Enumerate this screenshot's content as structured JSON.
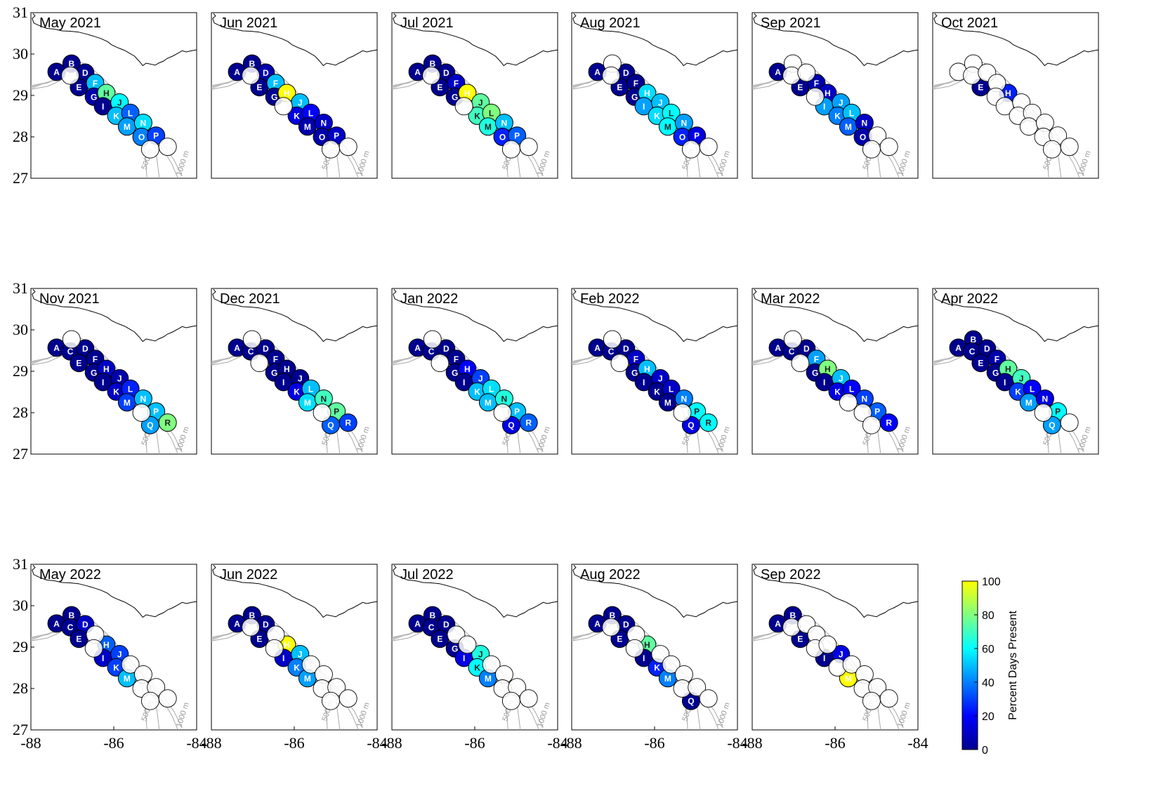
{
  "chart_data": {
    "type": "scatter",
    "description_axes": {
      "x_ticks": [
        "-88",
        "-86",
        "-84"
      ],
      "y_ticks": [
        "27",
        "28",
        "29",
        "30",
        "31"
      ],
      "xlim": [
        -88,
        -84
      ],
      "ylim": [
        27,
        31
      ]
    },
    "isobath_labels": [
      "500 m",
      "1000 m"
    ],
    "colorbar": {
      "label": "Percent Days Present",
      "ticks": [
        "0",
        "20",
        "40",
        "60",
        "80",
        "100"
      ],
      "range": [
        0,
        100
      ],
      "colormap": [
        "#00008f",
        "#0000ff",
        "#0080ff",
        "#00ffff",
        "#80ff80",
        "#ffff00"
      ]
    },
    "sites": [
      {
        "id": "A",
        "lon": -87.38,
        "lat": 29.57
      },
      {
        "id": "B",
        "lon": -87.02,
        "lat": 29.77
      },
      {
        "id": "C",
        "lon": -87.05,
        "lat": 29.48
      },
      {
        "id": "D",
        "lon": -86.69,
        "lat": 29.55
      },
      {
        "id": "E",
        "lon": -86.84,
        "lat": 29.2
      },
      {
        "id": "F",
        "lon": -86.45,
        "lat": 29.3
      },
      {
        "id": "G",
        "lon": -86.48,
        "lat": 28.97
      },
      {
        "id": "H",
        "lon": -86.18,
        "lat": 29.06
      },
      {
        "id": "I",
        "lon": -86.26,
        "lat": 28.74
      },
      {
        "id": "J",
        "lon": -85.86,
        "lat": 28.83
      },
      {
        "id": "K",
        "lon": -85.94,
        "lat": 28.51
      },
      {
        "id": "L",
        "lon": -85.6,
        "lat": 28.58
      },
      {
        "id": "M",
        "lon": -85.68,
        "lat": 28.25
      },
      {
        "id": "N",
        "lon": -85.29,
        "lat": 28.34
      },
      {
        "id": "O",
        "lon": -85.33,
        "lat": 28.0
      },
      {
        "id": "P",
        "lon": -84.98,
        "lat": 28.03
      },
      {
        "id": "Q",
        "lon": -85.12,
        "lat": 27.7
      },
      {
        "id": "R",
        "lon": -84.7,
        "lat": 27.76
      }
    ],
    "panels": [
      {
        "title": "May 2021",
        "values": {
          "A": 0,
          "B": 0,
          "C": null,
          "D": 0,
          "E": 0,
          "F": 50,
          "G": 5,
          "H": 75,
          "I": 0,
          "J": 60,
          "K": 50,
          "L": 35,
          "M": 45,
          "N": 55,
          "O": 40,
          "P": 30,
          "Q": null,
          "R": null
        }
      },
      {
        "title": "Jun 2021",
        "values": {
          "A": 0,
          "B": 0,
          "C": null,
          "D": 5,
          "E": 0,
          "F": 50,
          "G": 0,
          "H": 100,
          "I": null,
          "J": 50,
          "K": 15,
          "L": 20,
          "M": 5,
          "N": 10,
          "O": 5,
          "P": 10,
          "Q": null,
          "R": null
        }
      },
      {
        "title": "Jul 2021",
        "values": {
          "A": 0,
          "B": 0,
          "C": null,
          "D": 0,
          "E": 0,
          "F": 10,
          "G": 0,
          "H": 100,
          "I": null,
          "J": 75,
          "K": 70,
          "L": 80,
          "M": 65,
          "N": 50,
          "O": 25,
          "P": 35,
          "Q": null,
          "R": null
        }
      },
      {
        "title": "Aug 2021",
        "values": {
          "A": 0,
          "B": null,
          "C": null,
          "D": 0,
          "E": 0,
          "F": 0,
          "G": 0,
          "H": 55,
          "I": 45,
          "J": 50,
          "K": 55,
          "L": 60,
          "M": 60,
          "N": 45,
          "O": 25,
          "P": 15,
          "Q": null,
          "R": null
        }
      },
      {
        "title": "Sep 2021",
        "values": {
          "A": 0,
          "B": null,
          "C": null,
          "D": null,
          "E": 0,
          "F": 5,
          "G": null,
          "H": 10,
          "I": 45,
          "J": 45,
          "K": 40,
          "L": 50,
          "M": 35,
          "N": 10,
          "O": 5,
          "P": null,
          "Q": null,
          "R": null
        }
      },
      {
        "title": "Oct 2021",
        "values": {
          "A": null,
          "B": null,
          "C": null,
          "D": null,
          "E": 0,
          "F": null,
          "G": null,
          "H": 25,
          "I": null,
          "J": null,
          "K": null,
          "L": null,
          "M": null,
          "N": null,
          "O": null,
          "P": null,
          "Q": null,
          "R": null
        }
      },
      {
        "title": "Nov 2021",
        "values": {
          "A": 0,
          "B": null,
          "C": 0,
          "D": 0,
          "E": 0,
          "F": 0,
          "G": 0,
          "H": 10,
          "I": 0,
          "J": 5,
          "K": 10,
          "L": 25,
          "M": 30,
          "N": 50,
          "O": null,
          "P": 50,
          "Q": 45,
          "R": 80
        }
      },
      {
        "title": "Dec 2021",
        "values": {
          "A": 0,
          "B": null,
          "C": 0,
          "D": 0,
          "E": null,
          "F": 0,
          "G": 0,
          "H": 0,
          "I": 0,
          "J": 0,
          "K": 15,
          "L": 50,
          "M": 55,
          "N": 70,
          "O": null,
          "P": 75,
          "Q": 35,
          "R": 30
        }
      },
      {
        "title": "Jan 2022",
        "values": {
          "A": 0,
          "B": null,
          "C": 0,
          "D": 0,
          "E": null,
          "F": 0,
          "G": 0,
          "H": 20,
          "I": 0,
          "J": 30,
          "K": 50,
          "L": 55,
          "M": 50,
          "N": 65,
          "O": null,
          "P": 50,
          "Q": 15,
          "R": 35
        }
      },
      {
        "title": "Feb 2022",
        "values": {
          "A": 0,
          "B": null,
          "C": 0,
          "D": 0,
          "E": null,
          "F": 10,
          "G": 0,
          "H": 50,
          "I": 0,
          "J": 10,
          "K": 0,
          "L": 10,
          "M": 0,
          "N": 40,
          "O": null,
          "P": 60,
          "Q": 15,
          "R": 60
        }
      },
      {
        "title": "Mar 2022",
        "values": {
          "A": 0,
          "B": null,
          "C": 0,
          "D": 0,
          "E": null,
          "F": 45,
          "G": 0,
          "H": 80,
          "I": 0,
          "J": 50,
          "K": 15,
          "L": 20,
          "M": null,
          "N": 30,
          "O": null,
          "P": 35,
          "Q": null,
          "R": 20
        }
      },
      {
        "title": "Apr 2022",
        "values": {
          "A": 0,
          "B": 0,
          "C": 0,
          "D": 0,
          "E": 0,
          "F": 5,
          "G": 0,
          "H": 75,
          "I": 0,
          "J": 70,
          "K": 30,
          "L": 20,
          "M": 45,
          "N": 15,
          "O": null,
          "P": 60,
          "Q": 45,
          "R": null
        }
      },
      {
        "title": "May 2022",
        "values": {
          "A": 0,
          "B": 0,
          "C": 0,
          "D": 10,
          "E": 0,
          "F": null,
          "G": null,
          "H": 35,
          "I": 10,
          "J": 30,
          "K": 30,
          "L": null,
          "M": 50,
          "N": null,
          "O": null,
          "P": null,
          "Q": null,
          "R": null
        }
      },
      {
        "title": "Jun 2022",
        "values": {
          "A": 0,
          "B": 0,
          "C": null,
          "D": 0,
          "E": 0,
          "F": null,
          "G": null,
          "H": 100,
          "I": 10,
          "J": 50,
          "K": 40,
          "L": null,
          "M": 45,
          "N": null,
          "O": null,
          "P": null,
          "Q": null,
          "R": null
        }
      },
      {
        "title": "Jul 2022",
        "values": {
          "A": 0,
          "B": 0,
          "C": 0,
          "D": 0,
          "E": 0,
          "F": null,
          "G": 0,
          "H": null,
          "I": 15,
          "J": 65,
          "K": 60,
          "L": null,
          "M": 40,
          "N": null,
          "O": null,
          "P": null,
          "Q": null,
          "R": null
        }
      },
      {
        "title": "Aug 2022",
        "values": {
          "A": 0,
          "B": 0,
          "C": null,
          "D": 0,
          "E": 0,
          "F": null,
          "G": null,
          "H": 75,
          "I": 0,
          "J": null,
          "K": 25,
          "L": null,
          "M": 40,
          "N": null,
          "O": null,
          "P": null,
          "Q": 0,
          "R": null
        }
      },
      {
        "title": "Sep 2022",
        "values": {
          "A": 0,
          "B": 0,
          "C": null,
          "D": null,
          "E": 0,
          "F": null,
          "G": null,
          "H": null,
          "I": 0,
          "J": 15,
          "K": null,
          "L": null,
          "M": 100,
          "N": null,
          "O": null,
          "P": null,
          "Q": null,
          "R": null
        }
      }
    ]
  }
}
